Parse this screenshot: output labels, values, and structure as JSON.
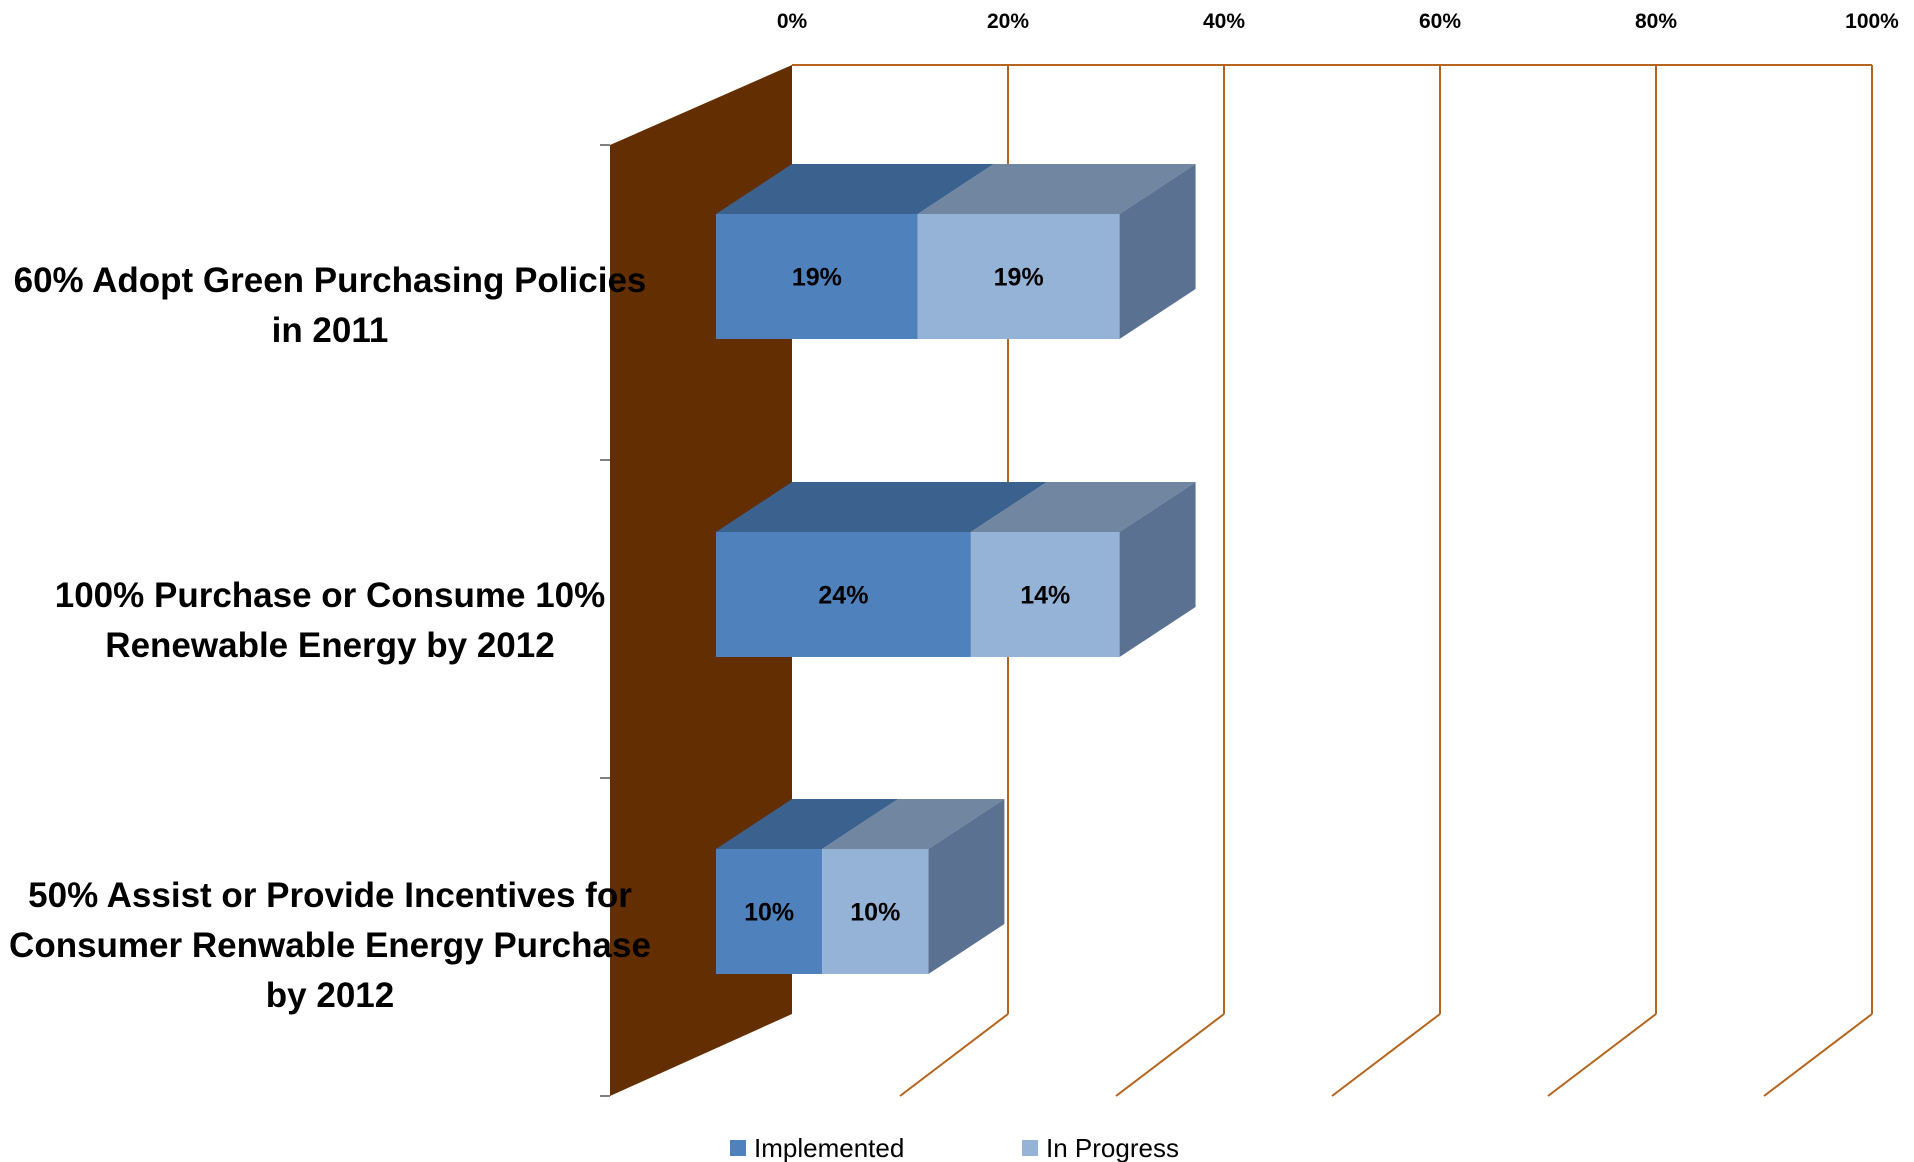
{
  "chart_data": {
    "type": "bar",
    "orientation": "horizontal",
    "stacked": true,
    "three_d": true,
    "categories": [
      [
        "60% Adopt Green Purchasing Policies",
        "in 2011"
      ],
      [
        "100% Purchase or Consume 10%",
        "Renewable Energy by 2012"
      ],
      [
        "50% Assist or Provide Incentives for",
        "Consumer Renwable Energy Purchase",
        "by 2012"
      ]
    ],
    "series": [
      {
        "name": "Implemented",
        "values": [
          19,
          24,
          10
        ],
        "labels": [
          "19%",
          "24%",
          "10%"
        ],
        "color": "#4f81bd"
      },
      {
        "name": "In Progress",
        "values": [
          19,
          14,
          10
        ],
        "labels": [
          "19%",
          "14%",
          "10%"
        ],
        "color": "#95b3d7"
      }
    ],
    "xlim": [
      0,
      100
    ],
    "xticks": [
      0,
      20,
      40,
      60,
      80,
      100
    ],
    "xtick_labels": [
      "0%",
      "20%",
      "40%",
      "60%",
      "80%",
      "100%"
    ],
    "grid": true,
    "gridline_color": "#b5641e",
    "wall_color": "#632e01",
    "legend_position": "bottom",
    "title": "",
    "xlabel": "",
    "ylabel": ""
  }
}
